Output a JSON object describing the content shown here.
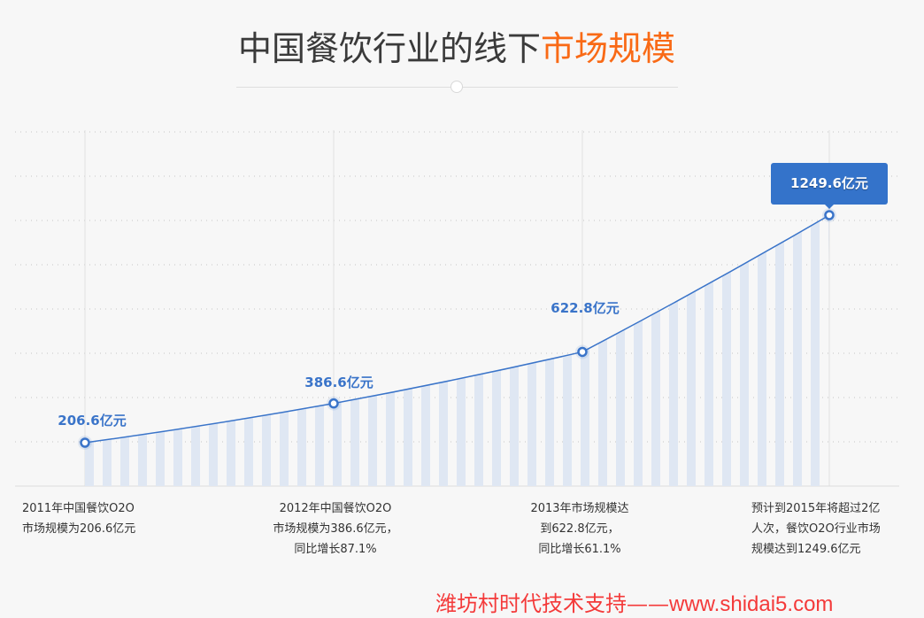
{
  "header": {
    "title_main": "中国餐饮行业的线下",
    "title_highlight": "市场规模",
    "highlight_color": "#f96a16"
  },
  "chart_data": {
    "type": "area",
    "title": "中国餐饮行业的线下市场规模",
    "xlabel": "",
    "ylabel": "",
    "unit": "亿元",
    "categories": [
      "2011",
      "2012",
      "2013",
      "2015(预计)"
    ],
    "series": [
      {
        "name": "中国餐饮O2O市场规模",
        "values": [
          206.6,
          386.6,
          622.8,
          1249.6
        ],
        "labels": [
          "206.6亿元",
          "386.6亿元",
          "622.8亿元",
          "1249.6亿元"
        ],
        "color": "#3a74c9"
      }
    ],
    "growth": [
      "",
      "87.1%",
      "61.1%",
      ""
    ],
    "grid": true,
    "grid_style": "dotted horizontal",
    "fill_style": "vertical stripes under line",
    "highlighted_point": 3
  },
  "labels": {
    "p0": "206.6亿元",
    "p1": "386.6亿元",
    "p2": "622.8亿元",
    "p3": "1249.6亿元"
  },
  "captions": [
    {
      "lines": [
        "2011年中国餐饮O2O",
        "市场规模为206.6亿元"
      ]
    },
    {
      "lines": [
        "2012年中国餐饮O2O",
        "市场规模为386.6亿元，",
        "同比增长87.1%"
      ]
    },
    {
      "lines": [
        "2013年市场规模达",
        "到622.8亿元，",
        "同比增长61.1%"
      ]
    },
    {
      "lines": [
        "预计到2015年将超过2亿",
        "人次，餐饮O2O行业市场",
        "规模达到1249.6亿元"
      ]
    }
  ],
  "footer": {
    "text": "潍坊村时代技术支持——",
    "url": "www.shidai5.com"
  }
}
